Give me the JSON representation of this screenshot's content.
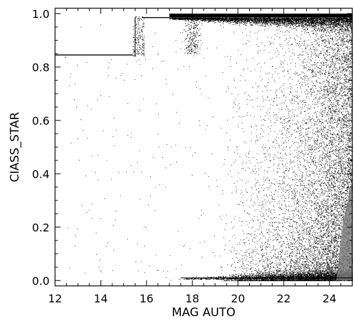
{
  "chart_data": {
    "type": "scatter",
    "title": "",
    "xlabel": "MAG AUTO",
    "ylabel": "CIASS_STAR",
    "xlim": [
      12,
      25
    ],
    "ylim": [
      -0.02,
      1.02
    ],
    "grid": false,
    "legend": "none",
    "x_ticks": [
      12,
      14,
      16,
      18,
      20,
      22,
      24
    ],
    "x_tick_labels": [
      "12",
      "14",
      "16",
      "18",
      "20",
      "22",
      "24"
    ],
    "y_ticks": [
      0.0,
      0.2,
      0.4,
      0.6,
      0.8,
      1.0
    ],
    "y_tick_labels": [
      "0.0",
      "0.2",
      "0.4",
      "0.6",
      "0.8",
      "1.0"
    ],
    "point_color": "#000000",
    "features": [
      {
        "kind": "horizontal-line",
        "name": "saturated-bright-sequence",
        "x": [
          12.0,
          15.4
        ],
        "y": 0.845
      },
      {
        "kind": "vertical-step",
        "name": "saturation-step",
        "x": 15.5,
        "y": [
          0.84,
          0.985
        ]
      },
      {
        "kind": "horizontal-line",
        "name": "upper-saturated-sequence",
        "x": [
          15.8,
          17.0
        ],
        "y": 0.985
      },
      {
        "kind": "dense-band",
        "name": "stellar-locus",
        "x": [
          17.0,
          25.0
        ],
        "y": [
          0.95,
          1.0
        ]
      },
      {
        "kind": "dense-band",
        "name": "galaxy-locus",
        "x": [
          17.5,
          25.0
        ],
        "y": [
          0.0,
          0.04
        ]
      },
      {
        "kind": "fan",
        "name": "faint-object-scatter",
        "x": [
          20.0,
          25.0
        ],
        "y": [
          0.0,
          1.0
        ]
      }
    ]
  }
}
